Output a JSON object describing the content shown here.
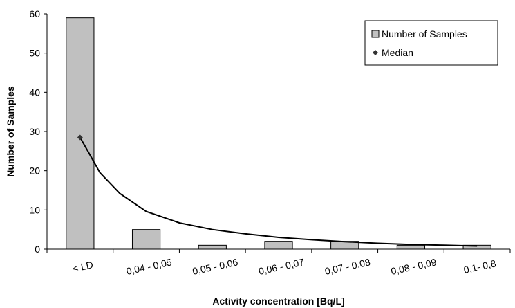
{
  "chart_data": {
    "type": "bar",
    "title": "",
    "xlabel": "Activity concentration [Bq/L]",
    "ylabel": "Number of Samples",
    "ylim": [
      0,
      60
    ],
    "yticks": [
      0,
      10,
      20,
      30,
      40,
      50,
      60
    ],
    "grid": false,
    "legend_position": "top-right",
    "categories": [
      "< LD",
      "0,04 - 0,05",
      "0,05 - 0,06",
      "0,06 - 0,07",
      "0,07 - 0,08",
      "0,08 - 0,09",
      "0,1- 0,8"
    ],
    "series": [
      {
        "name": "Number of Samples",
        "type": "bar",
        "color": "#c0c0c0",
        "values": [
          59,
          5,
          1,
          2,
          2,
          1,
          1
        ]
      },
      {
        "name": "Median",
        "type": "marker",
        "color": "#333333",
        "marker": "diamond",
        "points": [
          {
            "x": "< LD",
            "y": 28.5
          }
        ]
      }
    ],
    "trend_line": {
      "color": "#000000",
      "points": [
        {
          "x": 0.0,
          "y": 28.5
        },
        {
          "x": 0.3,
          "y": 19.5
        },
        {
          "x": 0.6,
          "y": 14.2
        },
        {
          "x": 1.0,
          "y": 9.6
        },
        {
          "x": 1.5,
          "y": 6.7
        },
        {
          "x": 2.0,
          "y": 5.0
        },
        {
          "x": 2.5,
          "y": 3.9
        },
        {
          "x": 3.0,
          "y": 3.0
        },
        {
          "x": 3.5,
          "y": 2.4
        },
        {
          "x": 4.0,
          "y": 1.9
        },
        {
          "x": 4.5,
          "y": 1.5
        },
        {
          "x": 5.0,
          "y": 1.2
        },
        {
          "x": 5.5,
          "y": 1.0
        },
        {
          "x": 6.0,
          "y": 0.8
        }
      ]
    }
  }
}
